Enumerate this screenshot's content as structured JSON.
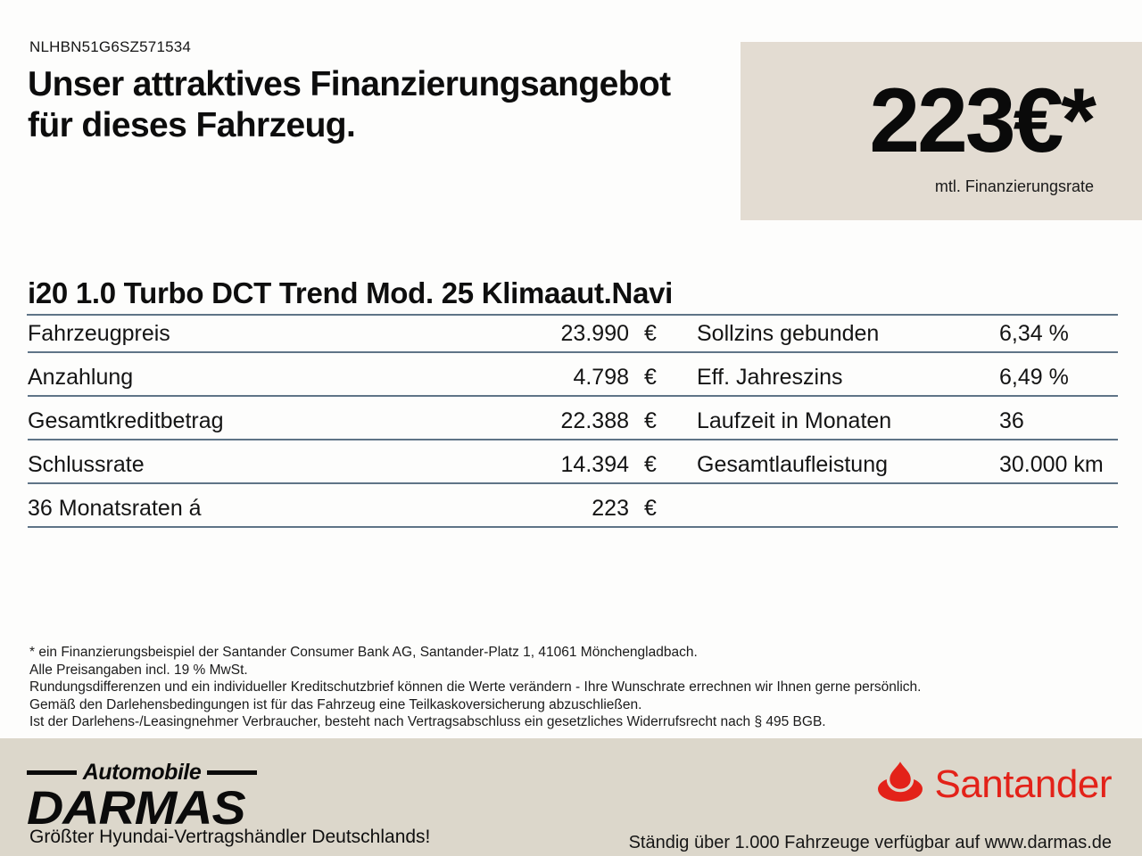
{
  "header": {
    "vin": "NLHBN51G6SZ571534",
    "title_line1": "Unser attraktives Finanzierungsangebot",
    "title_line2": "für dieses Fahrzeug."
  },
  "offer_box": {
    "rate": "223€*",
    "rate_caption": "mtl. Finanzierungsrate",
    "bg_color": "#e3dcd2"
  },
  "vehicle": {
    "model": "i20 1.0 Turbo DCT Trend Mod. 25 Klimaaut.Navi"
  },
  "finance_table": {
    "rule_color": "#5f7487",
    "rows": [
      {
        "left_label": "Fahrzeugpreis",
        "left_value": "23.990",
        "left_unit": "€",
        "right_label": "Sollzins gebunden",
        "right_value": "6,34 %"
      },
      {
        "left_label": "Anzahlung",
        "left_value": "4.798",
        "left_unit": "€",
        "right_label": "Eff. Jahreszins",
        "right_value": "6,49 %"
      },
      {
        "left_label": "Gesamtkreditbetrag",
        "left_value": "22.388",
        "left_unit": "€",
        "right_label": "Laufzeit in Monaten",
        "right_value": "36"
      },
      {
        "left_label": "Schlussrate",
        "left_value": "14.394",
        "left_unit": "€",
        "right_label": "Gesamtlaufleistung",
        "right_value": "30.000 km"
      },
      {
        "left_label": "36 Monatsraten á",
        "left_value": "223",
        "left_unit": "€",
        "right_label": "",
        "right_value": ""
      }
    ]
  },
  "disclaimer": {
    "lines": [
      "* ein Finanzierungsbeispiel der Santander Consumer Bank AG, Santander-Platz 1, 41061 Mönchengladbach.",
      "Alle Preisangaben incl. 19 % MwSt.",
      "Rundungsdifferenzen und ein individueller Kreditschutzbrief können die Werte verändern - Ihre Wunschrate errechnen wir Ihnen gerne persönlich.",
      "Gemäß den Darlehensbedingungen ist für das Fahrzeug eine Teilkaskoversicherung abzuschließen.",
      "Ist der Darlehens-/Leasingnehmer Verbraucher, besteht nach Vertragsabschluss ein gesetzliches Widerrufsrecht nach § 495 BGB."
    ]
  },
  "footer": {
    "bg_color": "#dcd7cb",
    "dealer_logo_top": "Automobile",
    "dealer_logo_name": "DARMAS",
    "dealer_slogan": "Größter Hyundai-Vertragshändler Deutschlands!",
    "bank_logo_text": "Santander",
    "bank_red": "#e32219",
    "bank_slogan": "Ständig über 1.000 Fahrzeuge verfügbar auf www.darmas.de"
  }
}
